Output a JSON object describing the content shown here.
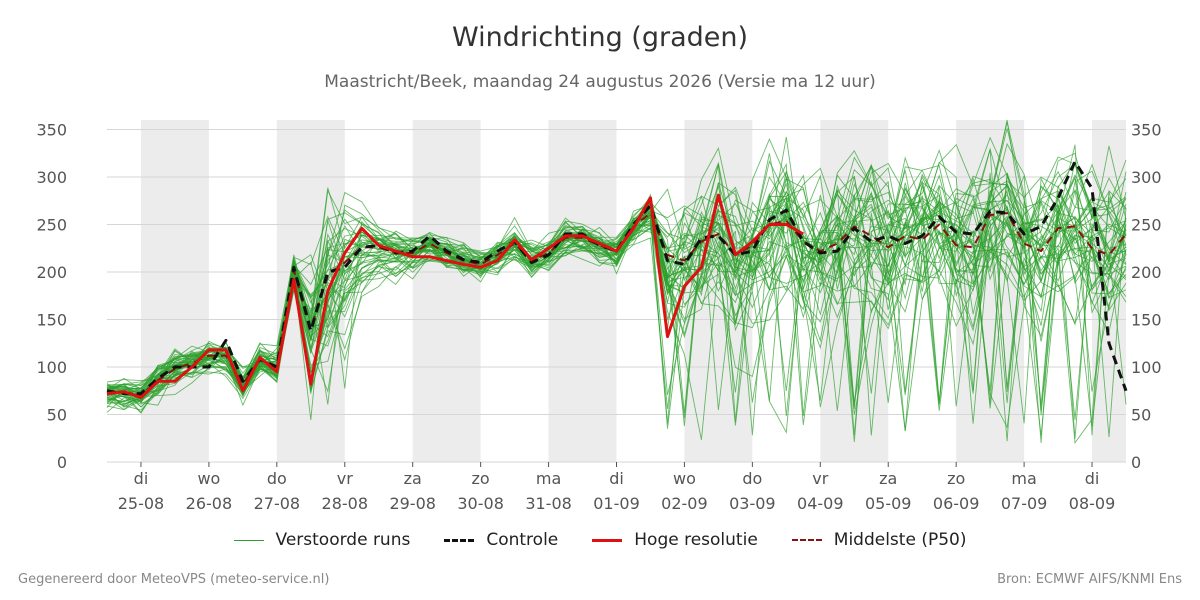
{
  "header": {
    "title": "Windrichting (graden)",
    "subtitle": "Maastricht/Beek, maandag 24 augustus 2026 (Versie ma 12 uur)"
  },
  "footer": {
    "left": "Gegenereerd door MeteoVPS (meteo-service.nl)",
    "right": "Bron: ECMWF AIFS/KNMI Ens"
  },
  "legend": {
    "items": [
      {
        "label": "Verstoorde runs",
        "color": "#2ca02c",
        "style": "thin-solid"
      },
      {
        "label": "Controle",
        "color": "#111111",
        "style": "dashed"
      },
      {
        "label": "Hoge resolutie",
        "color": "#dd1111",
        "style": "solid"
      },
      {
        "label": "Middelste (P50)",
        "color": "#8b1010",
        "style": "dashed"
      }
    ]
  },
  "chart_data": {
    "type": "line",
    "title": "Windrichting (graden)",
    "subtitle": "Maastricht/Beek, maandag 24 augustus 2026 (Versie ma 12 uur)",
    "ylim": [
      0,
      360
    ],
    "yticks": [
      0,
      50,
      100,
      150,
      200,
      250,
      300,
      350
    ],
    "x_unit": "days since 2026-08-24 00:00 (axis shows dates)",
    "xlim": [
      0.5,
      15.5
    ],
    "xticks": [
      {
        "x": 1,
        "day": "di",
        "date": "25-08"
      },
      {
        "x": 2,
        "day": "wo",
        "date": "26-08"
      },
      {
        "x": 3,
        "day": "do",
        "date": "27-08"
      },
      {
        "x": 4,
        "day": "vr",
        "date": "28-08"
      },
      {
        "x": 5,
        "day": "za",
        "date": "29-08"
      },
      {
        "x": 6,
        "day": "zo",
        "date": "30-08"
      },
      {
        "x": 7,
        "day": "ma",
        "date": "31-08"
      },
      {
        "x": 8,
        "day": "di",
        "date": "01-09"
      },
      {
        "x": 9,
        "day": "wo",
        "date": "02-09"
      },
      {
        "x": 10,
        "day": "do",
        "date": "03-09"
      },
      {
        "x": 11,
        "day": "vr",
        "date": "04-09"
      },
      {
        "x": 12,
        "day": "za",
        "date": "05-09"
      },
      {
        "x": 13,
        "day": "zo",
        "date": "06-09"
      },
      {
        "x": 14,
        "day": "ma",
        "date": "07-09"
      },
      {
        "x": 15,
        "day": "di",
        "date": "08-09"
      }
    ],
    "weekend_bands": [
      [
        1,
        2
      ],
      [
        3,
        4
      ],
      [
        5,
        6
      ],
      [
        7,
        8
      ],
      [
        9,
        10
      ],
      [
        11,
        12
      ],
      [
        13,
        14
      ],
      [
        15,
        15.5
      ]
    ],
    "grid": true,
    "legend_position": "bottom",
    "series": [
      {
        "name": "Hoge resolutie",
        "color": "#dd1111",
        "x": [
          0.5,
          0.75,
          1,
          1.25,
          1.5,
          1.75,
          2,
          2.25,
          2.5,
          2.75,
          3,
          3.25,
          3.5,
          3.75,
          4,
          4.25,
          4.5,
          4.75,
          5,
          5.25,
          5.5,
          5.75,
          6,
          6.25,
          6.5,
          6.75,
          7,
          7.25,
          7.5,
          7.75,
          8,
          8.25,
          8.5,
          8.75,
          9,
          9.25,
          9.5,
          9.75,
          10,
          10.25,
          10.5,
          10.75
        ],
        "y": [
          72,
          74,
          68,
          85,
          85,
          100,
          118,
          118,
          75,
          110,
          95,
          192,
          82,
          180,
          220,
          246,
          228,
          222,
          216,
          216,
          212,
          208,
          205,
          212,
          234,
          213,
          225,
          238,
          238,
          230,
          222,
          246,
          278,
          132,
          185,
          205,
          281,
          218,
          232,
          250,
          250,
          240
        ]
      },
      {
        "name": "Controle",
        "color": "#111111",
        "x": [
          0.5,
          0.75,
          1,
          1.25,
          1.5,
          1.75,
          2,
          2.25,
          2.5,
          2.75,
          3,
          3.25,
          3.5,
          3.75,
          4,
          4.25,
          4.5,
          4.75,
          5,
          5.25,
          5.5,
          5.75,
          6,
          6.25,
          6.5,
          6.75,
          7,
          7.25,
          7.5,
          7.75,
          8,
          8.25,
          8.5,
          8.75,
          9,
          9.25,
          9.5,
          9.75,
          10,
          10.25,
          10.5,
          10.75,
          11,
          11.25,
          11.5,
          11.75,
          12,
          12.25,
          12.5,
          12.75,
          13,
          13.25,
          13.5,
          13.75,
          14,
          14.25,
          14.5,
          14.75,
          15,
          15.25,
          15.5
        ],
        "y": [
          75,
          72,
          72,
          88,
          100,
          100,
          100,
          128,
          85,
          108,
          100,
          205,
          138,
          200,
          205,
          226,
          228,
          220,
          222,
          238,
          222,
          213,
          210,
          222,
          232,
          210,
          218,
          240,
          240,
          228,
          222,
          250,
          270,
          212,
          208,
          236,
          238,
          218,
          222,
          255,
          265,
          232,
          220,
          222,
          246,
          232,
          238,
          230,
          238,
          258,
          242,
          240,
          264,
          262,
          240,
          248,
          278,
          316,
          288,
          125,
          75
        ]
      },
      {
        "name": "Middelste (P50)",
        "color": "#8b1010",
        "x": [
          0.5,
          0.75,
          1,
          1.25,
          1.5,
          1.75,
          2,
          2.25,
          2.5,
          2.75,
          3,
          3.25,
          3.5,
          3.75,
          4,
          4.25,
          4.5,
          4.75,
          5,
          5.25,
          5.5,
          5.75,
          6,
          6.25,
          6.5,
          6.75,
          7,
          7.25,
          7.5,
          7.75,
          8,
          8.25,
          8.5,
          8.75,
          9,
          9.25,
          9.5,
          9.75,
          10,
          10.25,
          10.5,
          10.75,
          11,
          11.25,
          11.5,
          11.75,
          12,
          12.25,
          12.5,
          12.75,
          13,
          13.25,
          13.5,
          13.75,
          14,
          14.25,
          14.5,
          14.75,
          15,
          15.25,
          15.5
        ],
        "y": [
          72,
          73,
          70,
          86,
          98,
          104,
          112,
          112,
          82,
          108,
          100,
          202,
          140,
          196,
          210,
          226,
          226,
          220,
          220,
          230,
          220,
          212,
          208,
          218,
          230,
          212,
          220,
          236,
          236,
          228,
          222,
          248,
          262,
          218,
          212,
          232,
          240,
          218,
          228,
          250,
          254,
          232,
          222,
          230,
          248,
          238,
          226,
          238,
          234,
          250,
          228,
          226,
          260,
          262,
          230,
          222,
          246,
          248,
          225,
          218,
          240
        ]
      }
    ],
    "ensemble": {
      "name": "Verstoorde runs",
      "color": "#2ca02c",
      "member_count": 50,
      "x_start": 0.5,
      "x_step": 0.25,
      "points": 61,
      "spread_by_period": [
        {
          "x_from": 0.5,
          "x_to": 3.3,
          "typical_spread_deg": 25
        },
        {
          "x_from": 3.3,
          "x_to": 4.2,
          "typical_spread_deg": 120
        },
        {
          "x_from": 4.2,
          "x_to": 8.5,
          "typical_spread_deg": 25
        },
        {
          "x_from": 8.5,
          "x_to": 15.5,
          "typical_spread_deg": 110
        }
      ]
    }
  }
}
